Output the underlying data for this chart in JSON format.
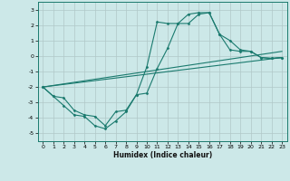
{
  "xlabel": "Humidex (Indice chaleur)",
  "bg_color": "#cce8e8",
  "grid_color": "#b0c8c8",
  "line_color": "#1a7a6e",
  "xlim": [
    -0.5,
    23.5
  ],
  "ylim": [
    -5.5,
    3.5
  ],
  "yticks": [
    -5,
    -4,
    -3,
    -2,
    -1,
    0,
    1,
    2,
    3
  ],
  "xticks": [
    0,
    1,
    2,
    3,
    4,
    5,
    6,
    7,
    8,
    9,
    10,
    11,
    12,
    13,
    14,
    15,
    16,
    17,
    18,
    19,
    20,
    21,
    22,
    23
  ],
  "series": [
    {
      "x": [
        0,
        1,
        2,
        3,
        4,
        5,
        6,
        7,
        8,
        9,
        10,
        11,
        12,
        13,
        14,
        15,
        16,
        17,
        18,
        19,
        20,
        21,
        22,
        23
      ],
      "y": [
        -2,
        -2.6,
        -3.2,
        -3.8,
        -3.9,
        -4.5,
        -4.7,
        -4.2,
        -3.6,
        -2.5,
        -0.7,
        2.2,
        2.1,
        2.1,
        2.7,
        2.8,
        2.8,
        1.4,
        1.0,
        0.4,
        0.3,
        -0.1,
        -0.15,
        -0.1
      ],
      "marker": true
    },
    {
      "x": [
        0,
        1,
        2,
        3,
        4,
        5,
        6,
        7,
        8,
        9,
        10,
        11,
        12,
        13,
        14,
        15,
        16,
        17,
        18,
        19,
        20,
        21,
        22,
        23
      ],
      "y": [
        -2,
        -2.6,
        -2.7,
        -3.5,
        -3.8,
        -3.9,
        -4.5,
        -3.6,
        -3.5,
        -2.5,
        -2.4,
        -0.8,
        0.5,
        2.1,
        2.1,
        2.7,
        2.8,
        1.4,
        0.4,
        0.3,
        0.3,
        -0.1,
        -0.15,
        -0.1
      ],
      "marker": true
    },
    {
      "x": [
        0,
        23
      ],
      "y": [
        -2,
        0.3
      ],
      "marker": false
    },
    {
      "x": [
        0,
        23
      ],
      "y": [
        -2,
        -0.1
      ],
      "marker": false
    }
  ]
}
